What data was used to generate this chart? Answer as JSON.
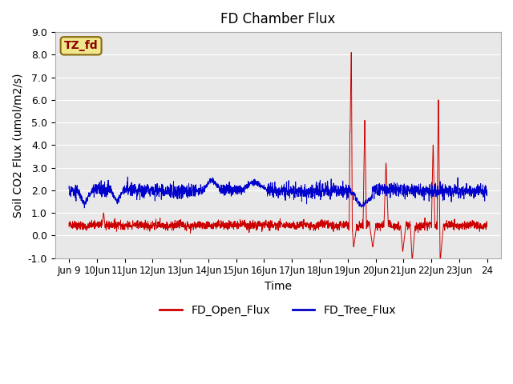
{
  "title": "FD Chamber Flux",
  "ylabel": "Soil CO2 Flux (umol/m2/s)",
  "xlabel": "Time",
  "annotation_text": "TZ_fd",
  "annotation_bg": "#f0e68c",
  "annotation_border": "#8b6914",
  "annotation_text_color": "#8b0000",
  "ylim": [
    -1.0,
    9.0
  ],
  "yticks": [
    -1.0,
    0.0,
    1.0,
    2.0,
    3.0,
    4.0,
    5.0,
    6.0,
    7.0,
    8.0,
    9.0
  ],
  "xlim": [
    8.5,
    24.5
  ],
  "xtick_positions": [
    9,
    10,
    11,
    12,
    13,
    14,
    15,
    16,
    17,
    18,
    19,
    20,
    21,
    22,
    23,
    24
  ],
  "xtick_labels": [
    "Jun 9",
    "10Jun",
    "11Jun",
    "12Jun",
    "13Jun",
    "14Jun",
    "15Jun",
    "16Jun",
    "17Jun",
    "18Jun",
    "19Jun",
    "20Jun",
    "21Jun",
    "22Jun",
    "23Jun",
    "24"
  ],
  "red_line_color": "#cc0000",
  "blue_line_color": "#0000cc",
  "bg_color": "#e8e8e8",
  "legend_red": "FD_Open_Flux",
  "legend_blue": "FD_Tree_Flux",
  "n_points": 2300,
  "x_start": 9.0,
  "x_end": 24.0,
  "seed": 42
}
